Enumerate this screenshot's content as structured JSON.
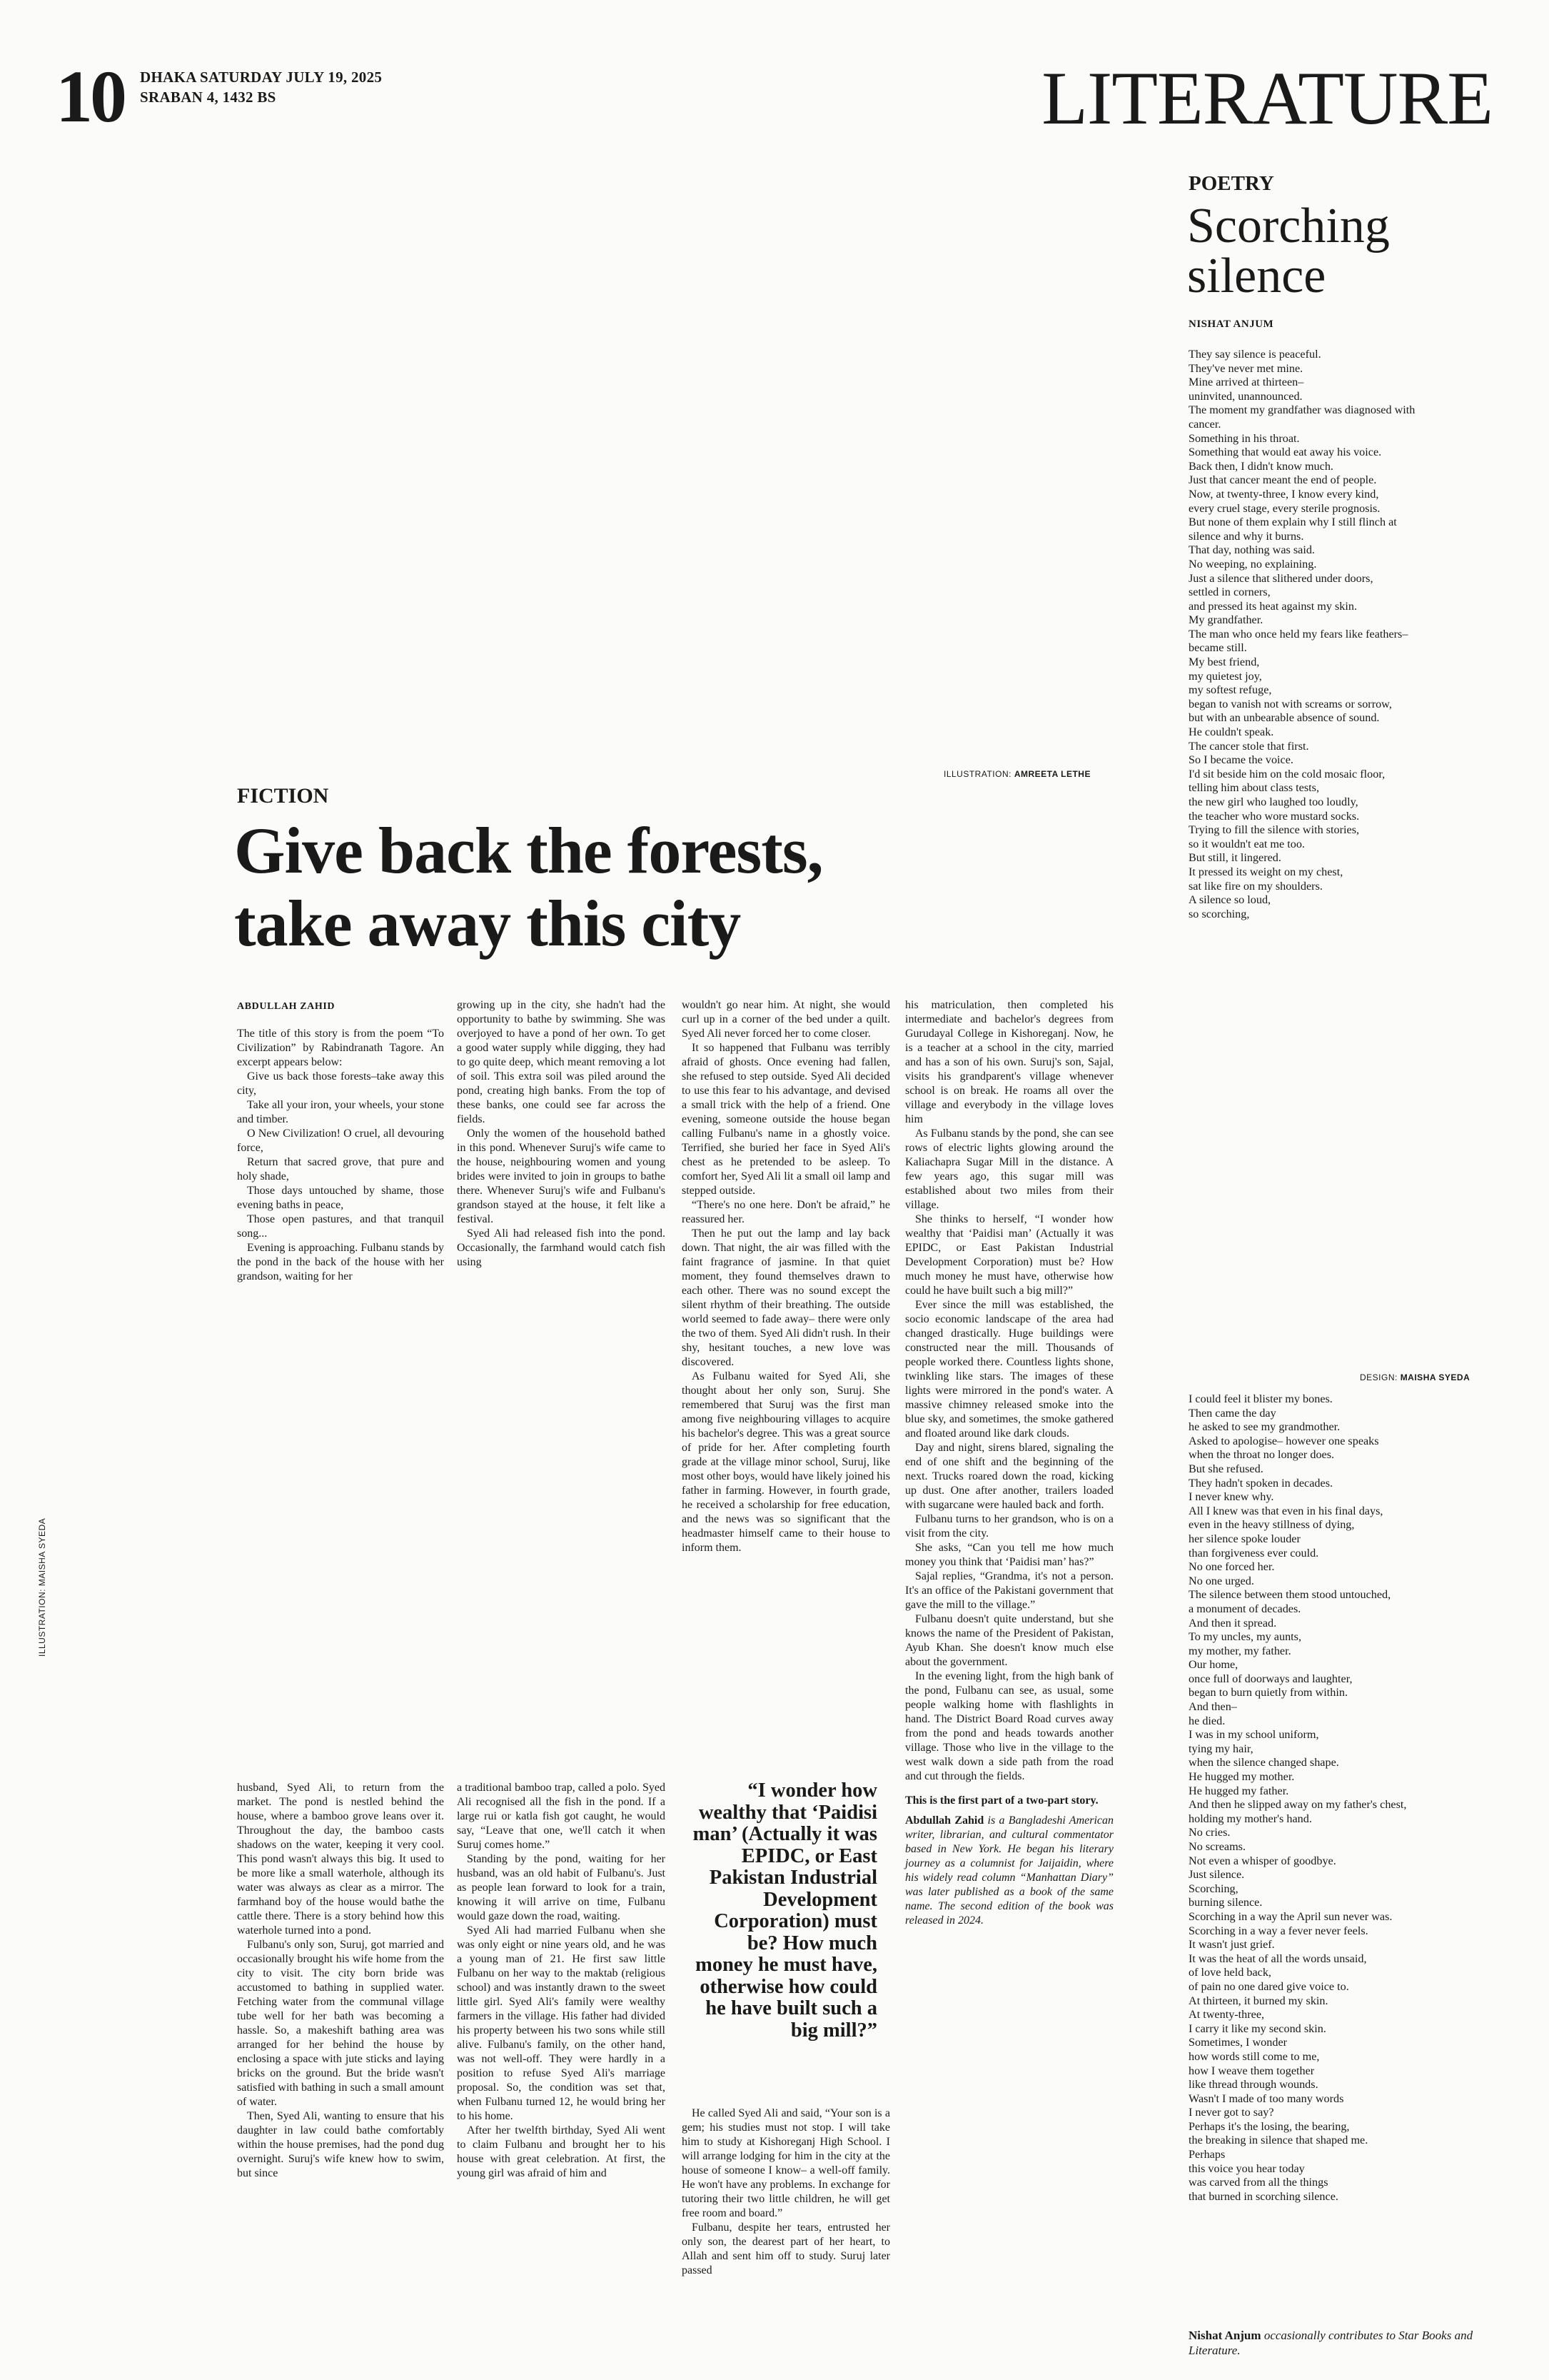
{
  "masthead": {
    "page_number": "10",
    "date_line": "DHAKA SATURDAY JULY 19, 2025",
    "bangla_date": "SRABAN 4, 1432 BS",
    "section": "LITERATURE"
  },
  "poetry": {
    "kicker": "POETRY",
    "title_line1": "Scorching",
    "title_line2": "silence",
    "author": "NISHAT ANJUM",
    "lines_part1": [
      "They say silence is peaceful.",
      "They've never met mine.",
      "Mine arrived at thirteen–",
      "uninvited, unannounced.",
      "The moment my grandfather was diagnosed with",
      "cancer.",
      "Something in his throat.",
      "Something that would eat away his voice.",
      "Back then, I didn't know much.",
      "Just that cancer meant the end of people.",
      "Now, at twenty-three, I know every kind,",
      "every cruel stage, every sterile prognosis.",
      "But none of them explain why I still flinch at",
      "silence and why it burns.",
      "That day, nothing was said.",
      "No weeping, no explaining.",
      "Just a silence that slithered under doors,",
      "settled in corners,",
      "and pressed its heat against my skin.",
      "My grandfather.",
      "The man who once held my fears like feathers–",
      "became still.",
      "My best friend,",
      "my quietest joy,",
      "my softest refuge,",
      "began to vanish not with screams or sorrow,",
      "but with an unbearable absence of sound.",
      "He couldn't speak.",
      "The cancer stole that first.",
      "So I became the voice.",
      "I'd sit beside him on the cold mosaic floor,",
      "telling him about class tests,",
      "the new girl who laughed too loudly,",
      "the teacher who wore mustard socks.",
      "Trying to fill the silence with stories,",
      "so it wouldn't eat me too.",
      "But still, it lingered.",
      "It pressed its weight on my chest,",
      "sat like fire on my shoulders.",
      "A silence so loud,",
      "so scorching,"
    ],
    "design_credit_label": "DESIGN:",
    "design_credit_name": "MAISHA SYEDA",
    "lines_part2": [
      "I could feel it blister my bones.",
      "Then came the day",
      "he asked to see my grandmother.",
      "Asked to apologise– however one speaks",
      "when the throat no longer does.",
      "But she refused.",
      "They hadn't spoken in decades.",
      "I never knew why.",
      "All I knew was that even in his final days,",
      "even in the heavy stillness of dying,",
      "her silence spoke louder",
      "than forgiveness ever could.",
      "No one forced her.",
      "No one urged.",
      "The silence between them stood untouched,",
      "a monument of decades.",
      "And then it spread.",
      "To my uncles, my aunts,",
      "my mother, my father.",
      "Our home,",
      "once full of doorways and laughter,",
      "began to burn quietly from within.",
      "And then–",
      "he died.",
      "I was in my school uniform,",
      "tying my hair,",
      "when the silence changed shape.",
      "He hugged my mother.",
      "He hugged my father.",
      "And then he slipped away on my father's chest,",
      "holding my mother's hand.",
      "No cries.",
      "No screams.",
      "Not even a whisper of goodbye.",
      "Just silence.",
      "Scorching,",
      "burning silence.",
      "Scorching in a way the April sun never was.",
      "Scorching in a way a fever never feels.",
      "It wasn't just grief.",
      "It was the heat of all the words unsaid,",
      "of love held back,",
      "of pain no one dared give voice to.",
      "At thirteen, it burned my skin.",
      "At twenty-three,",
      "I carry it like my second skin.",
      "Sometimes, I wonder",
      "how words still come to me,",
      "how I weave them together",
      "like thread through wounds.",
      "Wasn't I made of too many words",
      "I never got to say?",
      "Perhaps it's the losing, the bearing,",
      "the breaking in silence that shaped me.",
      "Perhaps",
      "this voice you hear today",
      "was carved from all the things",
      "that burned in scorching silence."
    ],
    "bio_name": "Nishat Anjum",
    "bio_text": " occasionally contributes to Star Books and Literature."
  },
  "fiction": {
    "illustration_credit_label": "ILLUSTRATION:",
    "illustration_credit_name": "AMREETA LETHE",
    "side_credit": "ILLUSTRATION: MAISHA SYEDA",
    "kicker": "FICTION",
    "headline_line1": "Give back the forests,",
    "headline_line2": "take away this city",
    "byline": "ABDULLAH ZAHID",
    "col1_top": [
      "The title of this story is from the poem “To Civilization” by Rabindranath Tagore. An excerpt appears below:",
      "Give us back those forests–take away this city,",
      "Take all your iron, your wheels, your stone and timber.",
      "O New Civilization! O cruel, all devouring force,",
      "Return that sacred grove, that pure and holy shade,",
      "Those days untouched by shame, those evening baths in peace,",
      "Those open pastures, and that tranquil song...",
      "Evening is approaching. Fulbanu stands by the pond in the back of the house with her grandson, waiting for her"
    ],
    "col2_top": [
      "growing up in the city, she hadn't had the opportunity to bathe by swimming. She was overjoyed to have a pond of her own. To get a good water supply while digging, they had to go quite deep, which meant removing a lot of soil. This extra soil was piled around the pond, creating high banks. From the top of these banks, one could see far across the fields.",
      "Only the women of the household bathed in this pond. Whenever Suruj's wife came to the house, neighbouring women and young brides were invited to join in groups to bathe there. Whenever Suruj's wife and Fulbanu's grandson stayed at the house, it felt like a festival.",
      "Syed Ali had released fish into the pond. Occasionally, the farmhand would catch fish using"
    ],
    "col3": [
      "wouldn't go near him. At night, she would curl up in a corner of the bed under a quilt. Syed Ali never forced her to come closer.",
      "It so happened that Fulbanu was terribly afraid of ghosts. Once evening had fallen, she refused to step outside. Syed Ali decided to use this fear to his advantage, and devised a small trick with the help of a friend. One evening, someone outside the house began calling Fulbanu's name in a ghostly voice. Terrified, she buried her face in Syed Ali's chest as he pretended to be asleep. To comfort her, Syed Ali lit a small oil lamp and stepped outside.",
      "“There's no one here. Don't be afraid,” he reassured her.",
      "Then he put out the lamp and lay back down. That night, the air was filled with the faint fragrance of jasmine. In that quiet moment, they found themselves drawn to each other. There was no sound except the silent rhythm of their breathing. The outside world seemed to fade away– there were only the two of them. Syed Ali didn't rush. In their shy, hesitant touches, a new love was discovered.",
      "As Fulbanu waited for Syed Ali, she thought about her only son, Suruj. She remembered that Suruj was the first man among five neighbouring villages to acquire his bachelor's degree. This was a great source of pride for her. After completing fourth grade at the village minor school, Suruj, like most other boys, would have likely joined his father in farming. However, in fourth grade, he received a scholarship for free education, and the news was so significant that the headmaster himself came to their house to inform them."
    ],
    "col4": [
      "his matriculation, then completed his intermediate and bachelor's degrees from Gurudayal College in Kishoreganj. Now, he is a teacher at a school in the city, married and has a son of his own. Suruj's son, Sajal, visits his grandparent's village whenever school is on break. He roams all over the village and everybody in the village loves him",
      "As Fulbanu stands by the pond, she can see rows of electric lights glowing around the Kaliachapra Sugar Mill in the distance. A few years ago, this sugar mill was established about two miles from their village.",
      "She thinks to herself, “I wonder how wealthy that ‘Paidisi man’ (Actually it was EPIDC, or East Pakistan Industrial Development Corporation) must be? How much money he must have, otherwise how could he have built such a big mill?”",
      "Ever since the mill was established, the socio economic landscape of the area had changed drastically. Huge buildings were constructed near the mill. Thousands of people worked there. Countless lights shone, twinkling like stars. The images of these lights were mirrored in the pond's water. A massive chimney released smoke into the blue sky, and sometimes, the smoke gathered and floated around like dark clouds.",
      "Day and night, sirens blared, signaling the end of one shift and the beginning of the next. Trucks roared down the road, kicking up dust. One after another, trailers loaded with sugarcane were hauled back and forth.",
      "Fulbanu turns to her grandson, who is on a visit from the city.",
      "She asks, “Can you tell me how much money you think that ‘Paidisi man’ has?”",
      "Sajal replies, “Grandma, it's not a person. It's an office of the Pakistani government that gave the mill to the village.”",
      "Fulbanu doesn't quite understand, but she knows the name of the President of Pakistan, Ayub Khan. She doesn't know much else about the government.",
      "In the evening light, from the high bank of the pond, Fulbanu can see, as usual, some people walking home with flashlights in hand. The District Board Road curves away from the pond and heads towards another village. Those who live in the village to the west walk down a side path from the road and cut through the fields."
    ],
    "col4_note": "This is the first part of a two-part story.",
    "col4_bio_name": "Abdullah Zahid",
    "col4_bio_text": " is a Bangladeshi American writer, librarian, and cultural commentator based in New York. He began his literary journey as a columnist for Jaijaidin, where his widely read column “Manhattan Diary” was later published as a book of the same name. The second edition of the book was released in 2024.",
    "col1_bottom": [
      "husband, Syed Ali, to return from the market. The pond is nestled behind the house, where a bamboo grove leans over it. Throughout the day, the bamboo casts shadows on the water, keeping it very cool. This pond wasn't always this big. It used to be more like a small waterhole, although its water was always as clear as a mirror. The farmhand boy of the house would bathe the cattle there. There is a story behind how this waterhole turned into a pond.",
      "Fulbanu's only son, Suruj, got married and occasionally brought his wife home from the city to visit. The city born bride was accustomed to bathing in supplied water. Fetching water from the communal village tube well for her bath was becoming a hassle. So, a makeshift bathing area was arranged for her behind the house by enclosing a space with jute sticks and laying bricks on the ground. But the bride wasn't satisfied with bathing in such a small amount of water.",
      "Then, Syed Ali, wanting to ensure that his daughter in law could bathe comfortably within the house premises, had the pond dug overnight. Suruj's wife knew how to swim, but since"
    ],
    "col2_bottom": [
      "a traditional bamboo trap, called a polo. Syed Ali recognised all the fish in the pond. If a large rui or katla fish got caught, he would say, “Leave that one, we'll catch it when Suruj comes home.”",
      "Standing by the pond, waiting for her husband, was an old habit of Fulbanu's. Just as people lean forward to look for a train, knowing it will arrive on time, Fulbanu would gaze down the road, waiting.",
      "Syed Ali had married Fulbanu when she was only eight or nine years old, and he was a young man of 21. He first saw little Fulbanu on her way to the maktab (religious school) and was instantly drawn to the sweet little girl. Syed Ali's family were wealthy farmers in the village. His father had divided his property between his two sons while still alive. Fulbanu's family, on the other hand, was not well-off. They were hardly in a position to refuse Syed Ali's marriage proposal. So, the condition was set that, when Fulbanu turned 12, he would bring her to his home.",
      "After her twelfth birthday, Syed Ali went to claim Fulbanu and brought her to his house with great celebration. At first, the young girl was afraid of him and"
    ],
    "pull_quote": "“I wonder how wealthy that ‘Paidisi man’ (Actually it was EPIDC, or East Pakistan Industrial Development Corporation) must be? How much money he must have, otherwise how could he have built such a big mill?”",
    "col3_bottom": [
      "He called Syed Ali and said, “Your son is a gem; his studies must not stop. I will take him to study at Kishoreganj High School. I will arrange lodging for him in the city at the house of someone I know– a well-off family. He won't have any problems. In exchange for tutoring their two little children, he will get free room and board.”",
      "Fulbanu, despite her tears, entrusted her only son, the dearest part of her heart, to Allah and sent him off to study. Suruj later passed"
    ]
  }
}
